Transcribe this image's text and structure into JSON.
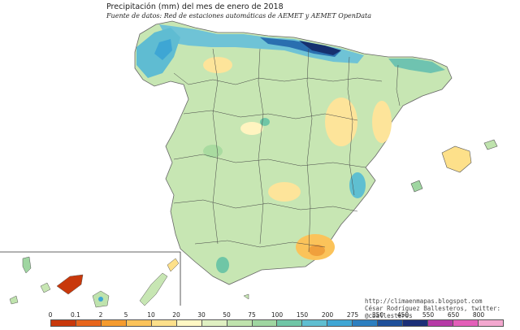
{
  "title": "Precipitación (mm) del mes de enero  de 2018",
  "subtitle": "Fuente de datos: Red de estaciones automáticas de AEMET y AEMET OpenData",
  "credits": {
    "url": "http://climaenmapas.blogspot.com",
    "author": "César Rodríguez Ballesteros, twitter: @cballesteros"
  },
  "legend": {
    "ticks": [
      "0",
      "0.1",
      "2",
      "5",
      "10",
      "20",
      "30",
      "50",
      "75",
      "100",
      "150",
      "200",
      "275",
      "350",
      "450",
      "550",
      "650",
      "800"
    ],
    "colors": [
      "#c8380b",
      "#e8661c",
      "#f59b2e",
      "#fbc35a",
      "#fde08a",
      "#fff8c4",
      "#dff0c2",
      "#bfe3ad",
      "#9fd6a1",
      "#6fc6a6",
      "#5fbfd1",
      "#3ea6d4",
      "#2b7fc0",
      "#1d4f9a",
      "#1a2e78",
      "#b53aa6",
      "#e35fb9",
      "#f3a7cf"
    ]
  }
}
